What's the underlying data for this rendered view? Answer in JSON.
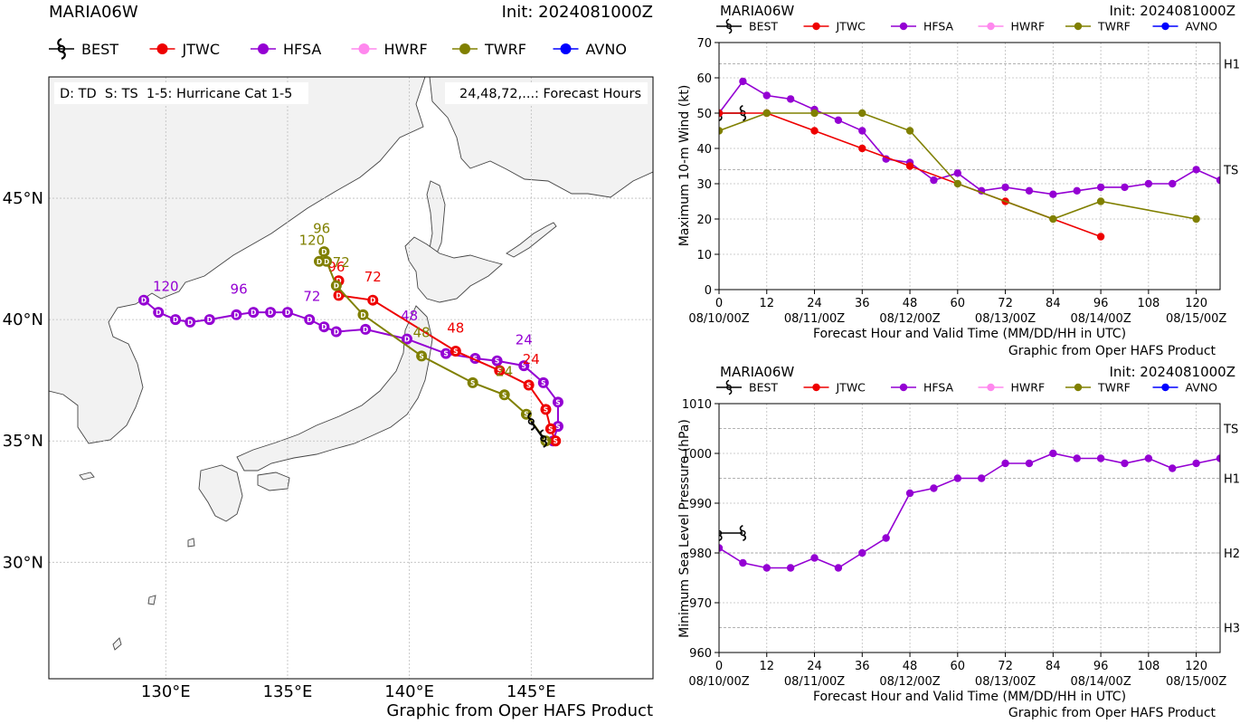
{
  "colors": {
    "BEST": "#000000",
    "JTWC": "#ee0000",
    "HFSA": "#9400d3",
    "HWRF": "#ff88ee",
    "TWRF": "#808000",
    "AVNO": "#0000ff"
  },
  "legend_models": [
    "BEST",
    "JTWC",
    "HFSA",
    "HWRF",
    "TWRF",
    "AVNO"
  ],
  "footer": "Graphic from Oper HAFS Product",
  "chart_data": [
    {
      "id": "track-map",
      "type": "scatter",
      "title": "MARIA06W",
      "subtitle": "Init: 2024081000Z",
      "key_text": "D: TD  S: TS  1-5: Hurricane Cat 1-5",
      "hours_text": "24,48,72,...: Forecast Hours",
      "xlim": [
        125.2,
        150.0
      ],
      "ylim": [
        25.2,
        50.0
      ],
      "x_ticks": [
        130,
        135,
        140,
        145
      ],
      "x_tick_labels": [
        "130°E",
        "135°E",
        "140°E",
        "145°E"
      ],
      "y_ticks": [
        30,
        35,
        40,
        45
      ],
      "y_tick_labels": [
        "30°N",
        "35°N",
        "40°N",
        "45°N"
      ],
      "grid": true,
      "series": [
        {
          "name": "HFSA",
          "points": [
            [
              145.9,
              35.0,
              "S"
            ],
            [
              146.1,
              35.6,
              "S"
            ],
            [
              146.1,
              36.6,
              "S"
            ],
            [
              145.5,
              37.4,
              "S"
            ],
            [
              144.7,
              38.1,
              "S"
            ],
            [
              143.6,
              38.3,
              "S"
            ],
            [
              142.7,
              38.4,
              "S"
            ],
            [
              141.5,
              38.6,
              "S"
            ],
            [
              139.9,
              39.2,
              "D"
            ],
            [
              138.2,
              39.6,
              "D"
            ],
            [
              137.0,
              39.5,
              "D"
            ],
            [
              136.5,
              39.7,
              "D"
            ],
            [
              135.9,
              40.0,
              "D"
            ],
            [
              135.0,
              40.3,
              "D"
            ],
            [
              134.3,
              40.3,
              "D"
            ],
            [
              133.6,
              40.3,
              "D"
            ],
            [
              132.9,
              40.2,
              "D"
            ],
            [
              131.8,
              40.0,
              "D"
            ],
            [
              131.0,
              39.9,
              "D"
            ],
            [
              130.4,
              40.0,
              "D"
            ],
            [
              129.7,
              40.3,
              "D"
            ],
            [
              129.1,
              40.8,
              "D"
            ]
          ],
          "hour_labels": [
            [
              "24",
              144.7,
              38.6
            ],
            [
              "48",
              140.0,
              39.6
            ],
            [
              "72",
              136.0,
              40.4
            ],
            [
              "96",
              133.0,
              40.7
            ],
            [
              "120",
              130.0,
              40.8
            ]
          ]
        },
        {
          "name": "JTWC",
          "points": [
            [
              146.0,
              35.0,
              "S"
            ],
            [
              145.8,
              35.5,
              "S"
            ],
            [
              145.6,
              36.3,
              "S"
            ],
            [
              144.9,
              37.3,
              "S"
            ],
            [
              143.7,
              37.9,
              "S"
            ],
            [
              141.9,
              38.7,
              "S"
            ],
            [
              138.5,
              40.8,
              "D"
            ],
            [
              137.1,
              41.0,
              "D"
            ],
            [
              137.1,
              41.6,
              "D"
            ]
          ],
          "hour_labels": [
            [
              "24",
              145.0,
              37.8
            ],
            [
              "48",
              141.9,
              39.1
            ],
            [
              "72",
              138.5,
              41.2
            ],
            [
              "96",
              137.0,
              41.6
            ]
          ]
        },
        {
          "name": "TWRF",
          "points": [
            [
              145.6,
              35.0,
              "S"
            ],
            [
              144.8,
              36.1,
              "S"
            ],
            [
              143.9,
              36.9,
              "S"
            ],
            [
              142.6,
              37.4,
              "S"
            ],
            [
              140.5,
              38.5,
              "S"
            ],
            [
              138.1,
              40.2,
              "D"
            ],
            [
              137.0,
              41.4,
              "D"
            ],
            [
              136.6,
              42.4,
              "D"
            ],
            [
              136.3,
              42.4,
              "D"
            ],
            [
              136.5,
              42.8,
              "D"
            ]
          ],
          "hour_labels": [
            [
              "24",
              143.9,
              37.3
            ],
            [
              "48",
              140.5,
              38.9
            ],
            [
              "72",
              137.2,
              41.8
            ],
            [
              "96",
              136.4,
              43.2
            ],
            [
              "120",
              136.0,
              42.7
            ]
          ]
        },
        {
          "name": "BEST",
          "points": [
            [
              145.5,
              35.1,
              "S"
            ],
            [
              145.0,
              35.8,
              "S"
            ]
          ],
          "hour_labels": []
        }
      ]
    },
    {
      "id": "wind",
      "type": "line",
      "title": "MARIA06W",
      "subtitle": "Init: 2024081000Z",
      "xlabel": "Forecast Hour and Valid Time (MM/DD/HH in UTC)",
      "ylabel": "Maximum 10-m Wind (kt)",
      "xlim": [
        0,
        126
      ],
      "ylim": [
        0,
        70
      ],
      "x_ticks": [
        0,
        12,
        24,
        36,
        48,
        60,
        72,
        84,
        96,
        108,
        120
      ],
      "y_ticks": [
        0,
        10,
        20,
        30,
        40,
        50,
        60,
        70
      ],
      "date_ticks": [
        [
          0,
          "08/10/00Z"
        ],
        [
          24,
          "08/11/00Z"
        ],
        [
          48,
          "08/12/00Z"
        ],
        [
          72,
          "08/13/00Z"
        ],
        [
          96,
          "08/14/00Z"
        ],
        [
          120,
          "08/15/00Z"
        ]
      ],
      "thresholds": [
        [
          64,
          "H1"
        ],
        [
          34,
          "TS"
        ]
      ],
      "grid": true,
      "series": [
        {
          "name": "BEST",
          "x": [
            0,
            6
          ],
          "values": [
            50,
            50
          ]
        },
        {
          "name": "HFSA",
          "x": [
            0,
            6,
            12,
            18,
            24,
            30,
            36,
            42,
            48,
            54,
            60,
            66,
            72,
            78,
            84,
            90,
            96,
            102,
            108,
            114,
            120,
            126
          ],
          "values": [
            50,
            59,
            55,
            54,
            51,
            48,
            45,
            37,
            36,
            31,
            33,
            28,
            29,
            28,
            27,
            28,
            29,
            29,
            30,
            30,
            34,
            31
          ]
        },
        {
          "name": "JTWC",
          "x": [
            0,
            12,
            24,
            36,
            48,
            72,
            96
          ],
          "values": [
            50,
            50,
            45,
            40,
            35,
            25,
            15
          ]
        },
        {
          "name": "TWRF",
          "x": [
            0,
            12,
            24,
            36,
            48,
            60,
            84,
            96,
            120
          ],
          "values": [
            45,
            50,
            50,
            50,
            45,
            30,
            20,
            25,
            20
          ]
        }
      ]
    },
    {
      "id": "pressure",
      "type": "line",
      "title": "MARIA06W",
      "subtitle": "Init: 2024081000Z",
      "xlabel": "Forecast Hour and Valid Time (MM/DD/HH in UTC)",
      "ylabel": "Minimum Sea Level Pressure (hPa)",
      "xlim": [
        0,
        126
      ],
      "ylim": [
        960,
        1010
      ],
      "x_ticks": [
        0,
        12,
        24,
        36,
        48,
        60,
        72,
        84,
        96,
        108,
        120
      ],
      "y_ticks": [
        960,
        970,
        980,
        990,
        1000,
        1010
      ],
      "date_ticks": [
        [
          0,
          "08/10/00Z"
        ],
        [
          24,
          "08/11/00Z"
        ],
        [
          48,
          "08/12/00Z"
        ],
        [
          72,
          "08/13/00Z"
        ],
        [
          96,
          "08/14/00Z"
        ],
        [
          120,
          "08/15/00Z"
        ]
      ],
      "thresholds": [
        [
          1005,
          "TS"
        ],
        [
          995,
          "H1"
        ],
        [
          980,
          "H2"
        ],
        [
          965,
          "H3"
        ]
      ],
      "grid": true,
      "series": [
        {
          "name": "BEST",
          "x": [
            0,
            6
          ],
          "values": [
            984,
            984
          ]
        },
        {
          "name": "HFSA",
          "x": [
            0,
            6,
            12,
            18,
            24,
            30,
            36,
            42,
            48,
            54,
            60,
            66,
            72,
            78,
            84,
            90,
            96,
            102,
            108,
            114,
            120,
            126
          ],
          "values": [
            981,
            978,
            977,
            977,
            979,
            977,
            980,
            983,
            992,
            993,
            995,
            995,
            998,
            998,
            1000,
            999,
            999,
            998,
            999,
            997,
            998,
            999
          ]
        }
      ]
    }
  ]
}
